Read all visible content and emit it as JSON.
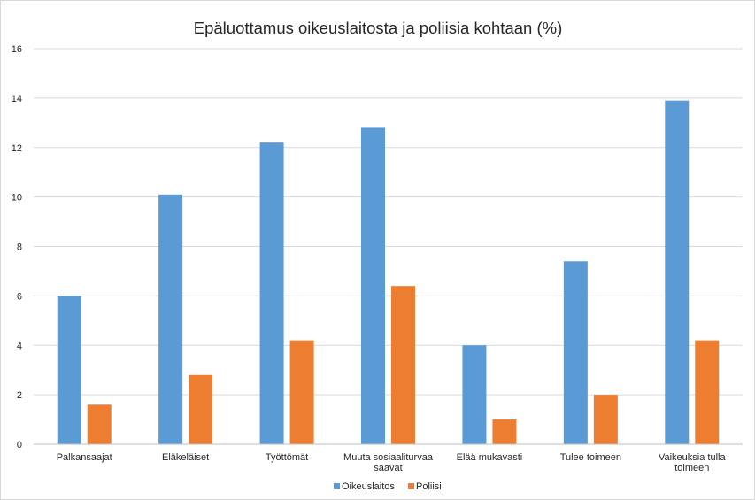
{
  "chart_data": {
    "type": "bar",
    "title": "Epäluottamus oikeuslaitosta ja poliisia kohtaan (%)",
    "xlabel": "",
    "ylabel": "",
    "ylim": [
      0,
      16
    ],
    "yticks": [
      0,
      2,
      4,
      6,
      8,
      10,
      12,
      14,
      16
    ],
    "grid": true,
    "legend_position": "bottom",
    "categories": [
      [
        "Palkansaajat"
      ],
      [
        "Eläkeläiset"
      ],
      [
        "Työttömät"
      ],
      [
        "Muuta sosiaaliturvaa",
        "saavat"
      ],
      [
        "Elää mukavasti"
      ],
      [
        "Tulee toimeen"
      ],
      [
        "Vaikeuksia tulla",
        "toimeen"
      ]
    ],
    "series": [
      {
        "name": "Oikeuslaitos",
        "color": "#5b9bd5",
        "values": [
          6.0,
          10.1,
          12.2,
          12.8,
          4.0,
          7.4,
          13.9
        ]
      },
      {
        "name": "Poliisi",
        "color": "#ed7d31",
        "values": [
          1.6,
          2.8,
          4.2,
          6.4,
          1.0,
          2.0,
          4.2
        ]
      }
    ]
  }
}
